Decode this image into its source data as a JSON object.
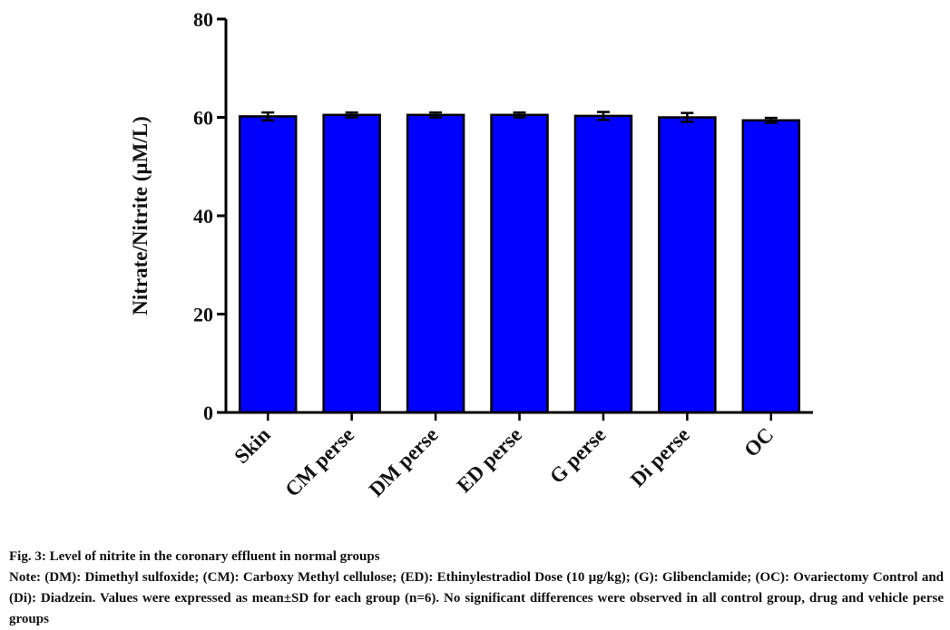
{
  "chart_data": {
    "type": "bar",
    "categories": [
      "Skin",
      "CM perse",
      "DM perse",
      "ED perse",
      "G perse",
      "Di perse",
      "OC"
    ],
    "values": [
      60.2,
      60.5,
      60.5,
      60.5,
      60.3,
      60.0,
      59.4
    ],
    "errors": [
      0.8,
      0.5,
      0.5,
      0.5,
      0.8,
      0.9,
      0.5
    ],
    "ylabel": "Nitrate/Nitrite (µM/L)",
    "xlabel": "",
    "ylim": [
      0,
      80
    ],
    "yticks": [
      0,
      20,
      40,
      60,
      80
    ],
    "bar_color": "#0000ff",
    "grid": false,
    "error_bars": "mean±SD"
  },
  "caption": {
    "title": "Fig. 3: Level of nitrite in the coronary effluent in normal groups",
    "note": "Note: (DM): Dimethyl sulfoxide; (CM): Carboxy Methyl cellulose; (ED): Ethinylestradiol Dose (10 µg/kg); (G): Glibenclamide; (OC): Ovariectomy Control and (Di): Diadzein. Values were expressed as mean±SD for each group (n=6). No significant differences were observed in all control group, drug and vehicle perse groups"
  }
}
